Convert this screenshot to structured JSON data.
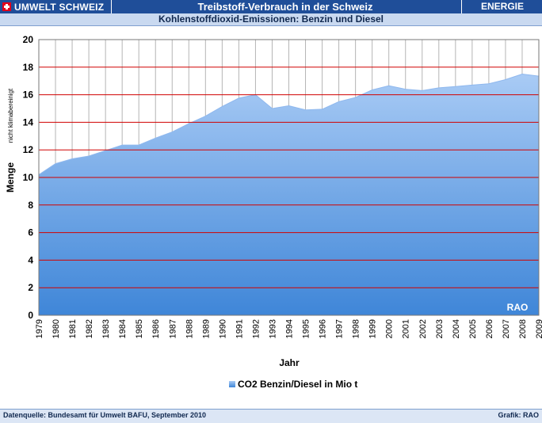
{
  "header": {
    "brand": "UMWELT SCHWEIZ",
    "title": "Treibstoff-Verbrauch in der Schweiz",
    "section": "ENERGIE",
    "subtitle": "Kohlenstoffdioxid-Emissionen: Benzin und Diesel"
  },
  "footer": {
    "source": "Datenquelle: Bundesamt für Umwelt BAFU, September 2010",
    "credit": "Grafik: RAO"
  },
  "colors": {
    "header_bg": "#1f4e99",
    "area_top": "#a9cbf5",
    "area_bottom": "#3f86d8",
    "gridline": "#d10000"
  },
  "chart_data": {
    "type": "area",
    "title": "",
    "xlabel": "Jahr",
    "ylabel": "Menge",
    "ylabel_note": "nicht klimabereinigt",
    "ylim": [
      0,
      20
    ],
    "yticks": [
      0,
      2,
      4,
      6,
      8,
      10,
      12,
      14,
      16,
      18,
      20
    ],
    "grid": true,
    "legend": "bottom",
    "watermark": "RAO",
    "x": [
      "1979",
      "1980",
      "1981",
      "1982",
      "1983",
      "1984",
      "1985",
      "1986",
      "1987",
      "1988",
      "1989",
      "1990",
      "1991",
      "1992",
      "1993",
      "1994",
      "1995",
      "1996",
      "1997",
      "1998",
      "1999",
      "2000",
      "2001",
      "2002",
      "2003",
      "2004",
      "2005",
      "2006",
      "2007",
      "2008",
      "2009"
    ],
    "series": [
      {
        "name": "CO2 Benzin/Diesel in Mio t",
        "values": [
          10.2,
          11.0,
          11.35,
          11.55,
          11.95,
          12.35,
          12.35,
          12.85,
          13.3,
          13.9,
          14.45,
          15.15,
          15.75,
          16.0,
          15.0,
          15.2,
          14.9,
          14.95,
          15.5,
          15.8,
          16.35,
          16.65,
          16.4,
          16.3,
          16.5,
          16.6,
          16.7,
          16.8,
          17.1,
          17.5,
          17.35
        ]
      }
    ]
  }
}
